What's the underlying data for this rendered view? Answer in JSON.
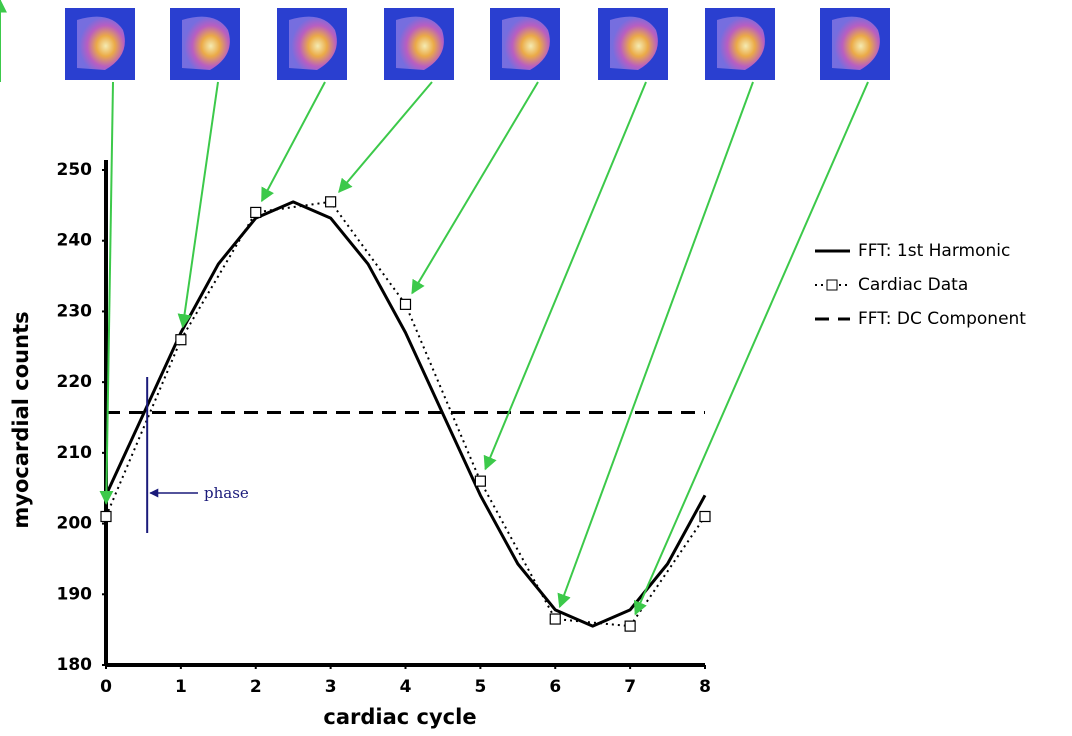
{
  "chart_data": {
    "type": "line",
    "x_label": "cardiac cycle",
    "y_label": "myocardial counts",
    "xlim": [
      0,
      8
    ],
    "ylim": [
      180,
      250
    ],
    "xticks": [
      0,
      1,
      2,
      3,
      4,
      5,
      6,
      7,
      8
    ],
    "yticks": [
      180,
      190,
      200,
      210,
      220,
      230,
      240,
      250
    ],
    "grid": false,
    "legend": "right",
    "series": [
      {
        "name": "FFT:  1st Harmonic",
        "color": "#000000",
        "style": "solid",
        "x": [
          0,
          0.5,
          1,
          1.5,
          2,
          2.5,
          3,
          3.5,
          4,
          4.5,
          5,
          5.5,
          6,
          6.5,
          7,
          7.5,
          8
        ],
        "values": [
          204,
          215.5,
          227,
          236.7,
          243.2,
          245.5,
          243.2,
          236.7,
          227,
          215.5,
          204,
          194.3,
          187.8,
          185.5,
          187.8,
          194.3,
          204
        ]
      },
      {
        "name": "Cardiac Data",
        "color": "#000000",
        "style": "dotted",
        "x": [
          0,
          1,
          2,
          3,
          4,
          5,
          6,
          7,
          8
        ],
        "values": [
          201,
          226,
          244,
          245.5,
          231,
          206,
          186.5,
          185.5,
          201
        ]
      },
      {
        "name": "FFT:  DC Component",
        "color": "#000000",
        "style": "dashed",
        "x": [
          0,
          8
        ],
        "values": [
          215.7,
          215.7
        ]
      }
    ],
    "annotation": {
      "text": "phase",
      "x": 0.55
    }
  }
}
